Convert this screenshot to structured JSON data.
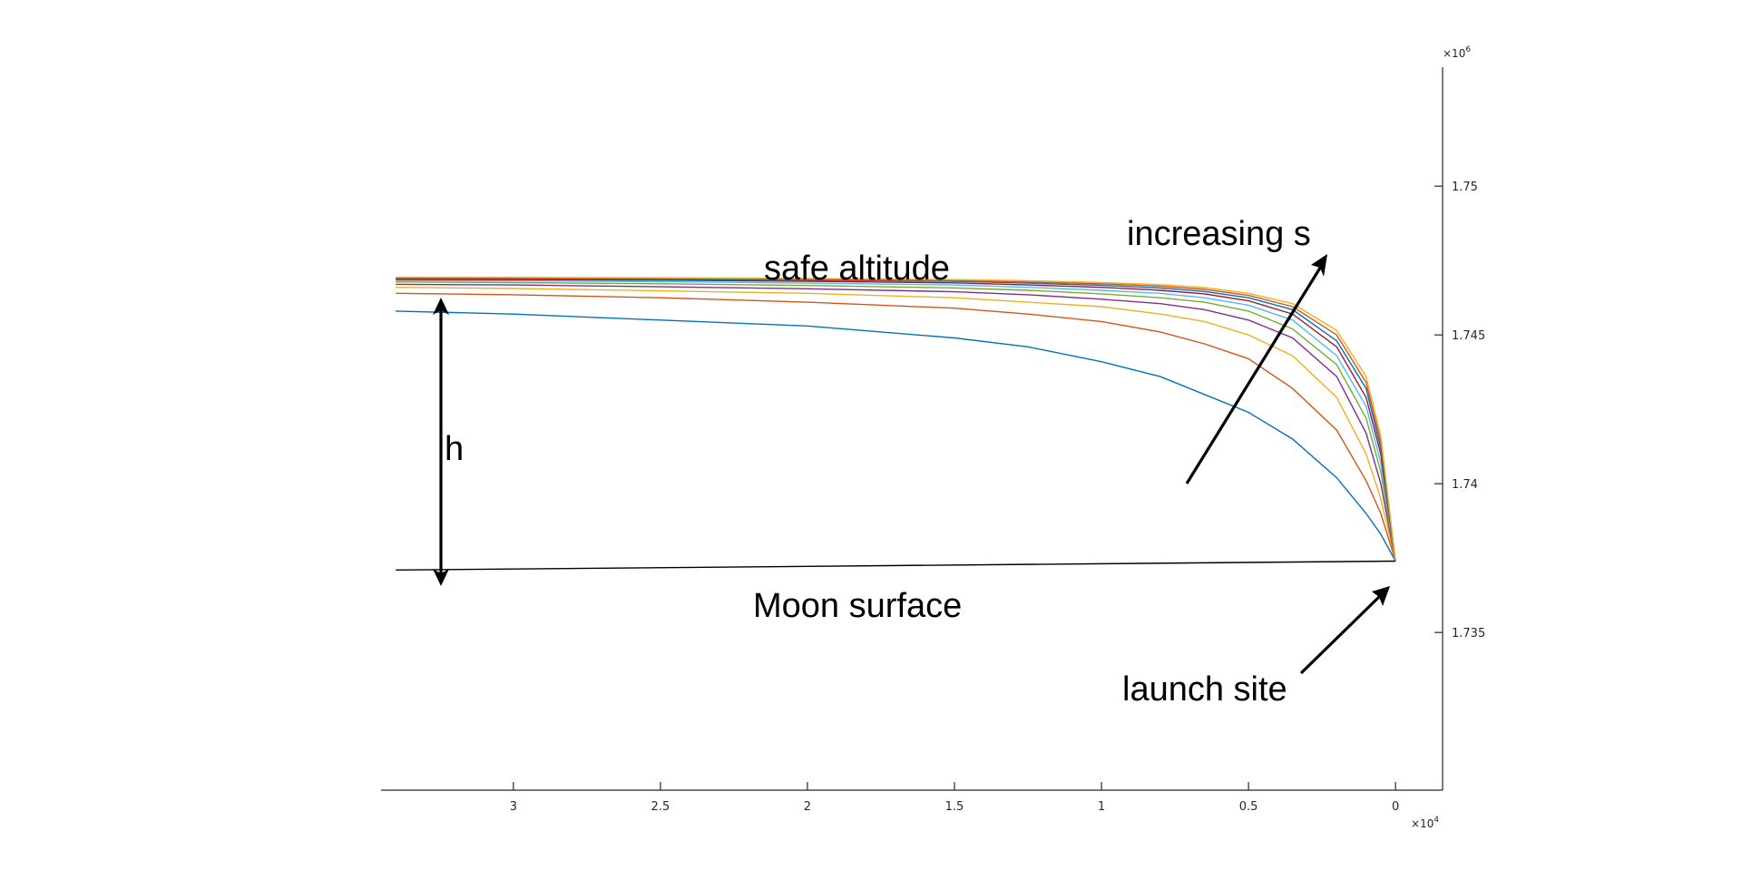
{
  "chart_data": {
    "type": "line",
    "title": "",
    "xlabel": "",
    "ylabel": "",
    "x_reversed": true,
    "xlim": [
      -1600,
      34500
    ],
    "ylim": [
      1729700,
      1754000
    ],
    "x_exponent": "×10",
    "x_exponent_power": "4",
    "y_exponent": "×10",
    "y_exponent_power": "6",
    "xticks": [
      {
        "value": 30000,
        "label": "3"
      },
      {
        "value": 25000,
        "label": "2.5"
      },
      {
        "value": 20000,
        "label": "2"
      },
      {
        "value": 15000,
        "label": "1.5"
      },
      {
        "value": 10000,
        "label": "1"
      },
      {
        "value": 5000,
        "label": "0.5"
      },
      {
        "value": 0,
        "label": "0"
      }
    ],
    "yticks": [
      {
        "value": 1735000,
        "label": "1.735"
      },
      {
        "value": 1740000,
        "label": "1.74"
      },
      {
        "value": 1745000,
        "label": "1.745"
      },
      {
        "value": 1750000,
        "label": "1.75"
      }
    ],
    "x": [
      34000,
      30000,
      25000,
      20000,
      15000,
      12500,
      10000,
      8000,
      6500,
      5000,
      3500,
      2000,
      1000,
      500,
      0
    ],
    "series": [
      {
        "color": "#0072BD",
        "values": [
          1745800,
          1745700,
          1745500,
          1745300,
          1744900,
          1744600,
          1744100,
          1743600,
          1743000,
          1742400,
          1741500,
          1740200,
          1739000,
          1738300,
          1737400
        ]
      },
      {
        "color": "#D95319",
        "values": [
          1746400,
          1746350,
          1746250,
          1746100,
          1745900,
          1745700,
          1745450,
          1745100,
          1744700,
          1744200,
          1743200,
          1741800,
          1740100,
          1739000,
          1737400
        ]
      },
      {
        "color": "#EDB120",
        "values": [
          1746600,
          1746560,
          1746480,
          1746400,
          1746250,
          1746100,
          1745950,
          1745700,
          1745450,
          1745000,
          1744300,
          1742900,
          1741000,
          1739500,
          1737400
        ]
      },
      {
        "color": "#7E2F8E",
        "values": [
          1746700,
          1746680,
          1746620,
          1746550,
          1746450,
          1746350,
          1746200,
          1746050,
          1745850,
          1745500,
          1744900,
          1743600,
          1741700,
          1740000,
          1737400
        ]
      },
      {
        "color": "#77AC30",
        "values": [
          1746780,
          1746760,
          1746720,
          1746660,
          1746580,
          1746500,
          1746380,
          1746250,
          1746100,
          1745800,
          1745200,
          1744000,
          1742200,
          1740400,
          1737400
        ]
      },
      {
        "color": "#4DBEEE",
        "values": [
          1746830,
          1746820,
          1746790,
          1746740,
          1746680,
          1746600,
          1746500,
          1746400,
          1746250,
          1746000,
          1745500,
          1744300,
          1742600,
          1740700,
          1737400
        ]
      },
      {
        "color": "#A2142F",
        "values": [
          1746870,
          1746860,
          1746840,
          1746800,
          1746750,
          1746680,
          1746600,
          1746500,
          1746380,
          1746150,
          1745700,
          1744600,
          1742900,
          1741000,
          1737400
        ]
      },
      {
        "color": "#0072BD",
        "values": [
          1746900,
          1746890,
          1746870,
          1746840,
          1746800,
          1746740,
          1746670,
          1746580,
          1746460,
          1746250,
          1745850,
          1744800,
          1743200,
          1741200,
          1737400
        ]
      },
      {
        "color": "#D95319",
        "values": [
          1746920,
          1746915,
          1746900,
          1746870,
          1746830,
          1746780,
          1746720,
          1746640,
          1746530,
          1746330,
          1745950,
          1745000,
          1743400,
          1741400,
          1737400
        ]
      },
      {
        "color": "#EDB120",
        "values": [
          1746940,
          1746935,
          1746920,
          1746900,
          1746860,
          1746820,
          1746760,
          1746690,
          1746590,
          1746400,
          1746050,
          1745150,
          1743600,
          1741600,
          1737400
        ]
      }
    ],
    "surface": {
      "x": [
        34000,
        0
      ],
      "values": [
        1737100,
        1737400
      ]
    },
    "annotations": {
      "safe_altitude": "safe altitude",
      "moon_surface": "Moon surface",
      "h": "h",
      "increasing_s": "increasing s",
      "launch_site": "launch site"
    }
  }
}
